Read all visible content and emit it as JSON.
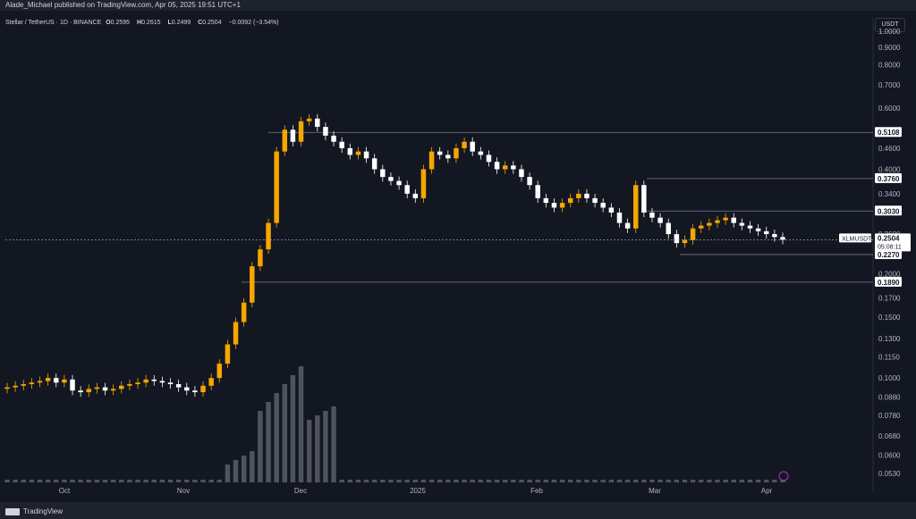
{
  "publisher_line": "Alade_Michael published on TradingView.com, Apr 05, 2025 19:51 UTC+1",
  "symbol": {
    "name": "Stellar / TetherUS · 1D · BINANCE",
    "ohlc": [
      {
        "label": "O",
        "value": "0.2595"
      },
      {
        "label": "H",
        "value": "0.2615"
      },
      {
        "label": "L",
        "value": "0.2499"
      },
      {
        "label": "C",
        "value": "0.2504"
      }
    ],
    "change": "−0.0092 (−3.54%)"
  },
  "currency_button": "USDT",
  "footer_brand": "TradingView",
  "price_axis": {
    "ticks": [
      "1.0000",
      "0.9000",
      "0.8000",
      "0.7000",
      "0.6000",
      "0.5108",
      "0.4600",
      "0.4000",
      "0.3760",
      "0.3400",
      "0.3030",
      "0.2600",
      "0.2270",
      "0.2000",
      "0.1890",
      "0.1700",
      "0.1500",
      "0.1300",
      "0.1150",
      "0.1000",
      "0.0880",
      "0.0780",
      "0.0680",
      "0.0600",
      "0.0530"
    ]
  },
  "time_axis": {
    "labels": [
      "Oct",
      "Nov",
      "Dec",
      "2025",
      "Feb",
      "Mar",
      "Apr"
    ]
  },
  "levels": [
    {
      "label": "0.5108"
    },
    {
      "label": "0.3760"
    },
    {
      "label": "0.3030"
    },
    {
      "label": "0.2270"
    },
    {
      "label": "0.1890"
    }
  ],
  "last_price": {
    "ticker": "XLMUSDT",
    "price": "0.2504",
    "countdown": "05:08:11"
  },
  "colors": {
    "up": "#f7a600",
    "down": "#ffffff",
    "background": "#131722",
    "grid": "#1e222d",
    "level_line": "#787b86",
    "volume": "#787b86"
  },
  "chart_data": {
    "type": "candlestick",
    "symbol": "XLMUSDT",
    "interval": "1D",
    "exchange": "BINANCE",
    "y_scale": "log",
    "ylim": [
      0.05,
      1.0
    ],
    "closes": [
      0.094,
      0.095,
      0.096,
      0.097,
      0.098,
      0.1,
      0.097,
      0.099,
      0.092,
      0.091,
      0.093,
      0.094,
      0.092,
      0.093,
      0.095,
      0.096,
      0.097,
      0.099,
      0.098,
      0.097,
      0.096,
      0.094,
      0.092,
      0.091,
      0.095,
      0.1,
      0.11,
      0.125,
      0.145,
      0.165,
      0.21,
      0.235,
      0.28,
      0.45,
      0.52,
      0.48,
      0.55,
      0.56,
      0.53,
      0.5,
      0.48,
      0.46,
      0.44,
      0.45,
      0.43,
      0.4,
      0.38,
      0.37,
      0.36,
      0.34,
      0.33,
      0.4,
      0.45,
      0.44,
      0.43,
      0.46,
      0.48,
      0.45,
      0.44,
      0.42,
      0.4,
      0.41,
      0.4,
      0.38,
      0.36,
      0.33,
      0.32,
      0.31,
      0.32,
      0.33,
      0.34,
      0.33,
      0.32,
      0.31,
      0.3,
      0.28,
      0.27,
      0.36,
      0.3,
      0.29,
      0.28,
      0.26,
      0.245,
      0.25,
      0.27,
      0.275,
      0.28,
      0.285,
      0.29,
      0.28,
      0.275,
      0.27,
      0.265,
      0.26,
      0.255,
      0.2504
    ],
    "horizontal_levels": [
      0.5108,
      0.376,
      0.303,
      0.227,
      0.189
    ]
  }
}
